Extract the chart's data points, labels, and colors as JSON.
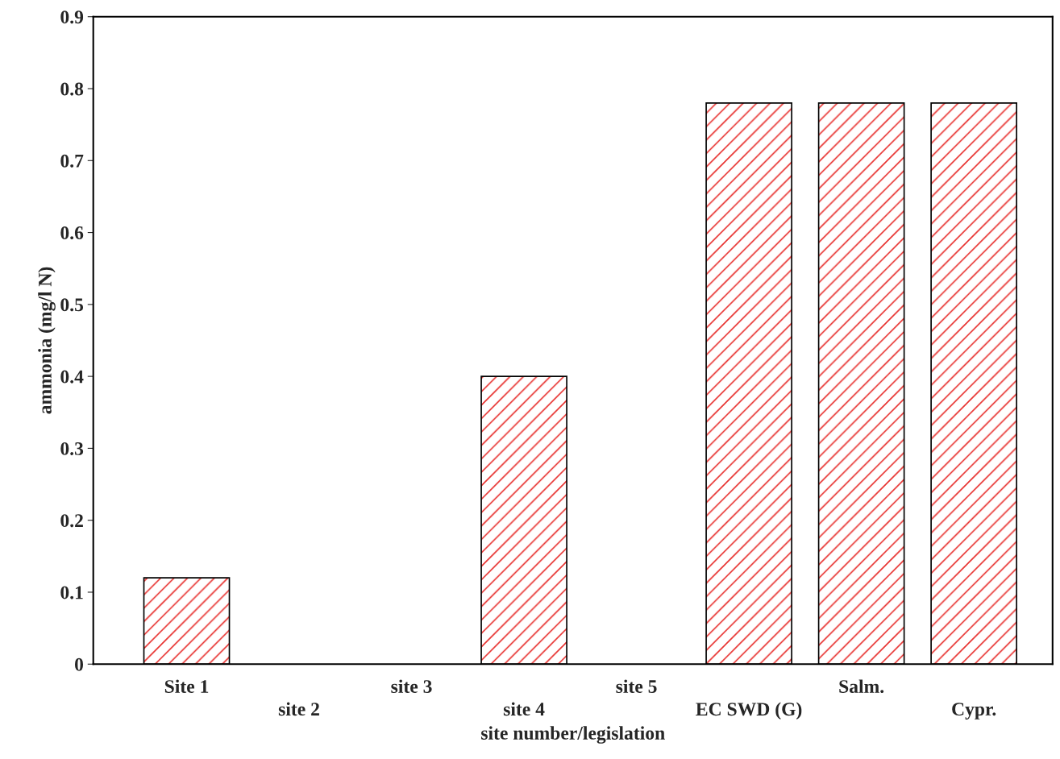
{
  "chart_data": {
    "type": "bar",
    "xlabel": "site number/legislation",
    "ylabel": "ammonia (mg/l N)",
    "categories": [
      "Site 1",
      "site 2",
      "site 3",
      "site 4",
      "site 5",
      "EC SWD (G)",
      "Salm.",
      "Cypr."
    ],
    "values": [
      0.12,
      0,
      0,
      0.4,
      0,
      0.78,
      0.78,
      0.78
    ],
    "color": "#e8312f",
    "ylim": [
      0,
      0.9
    ],
    "yticks": [
      {
        "value": 0,
        "label": "0"
      },
      0.1,
      0.2,
      0.3,
      0.4,
      0.5,
      0.6,
      0.7,
      0.8,
      0.9
    ],
    "grid": false
  }
}
